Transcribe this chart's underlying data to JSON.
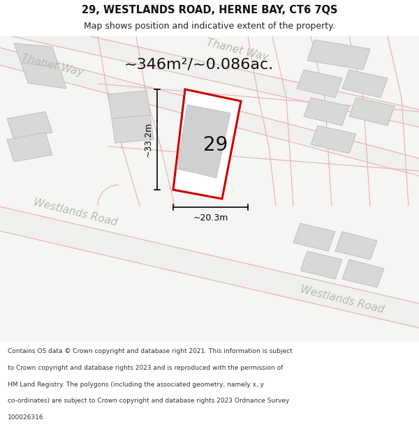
{
  "title": "29, WESTLANDS ROAD, HERNE BAY, CT6 7QS",
  "subtitle": "Map shows position and indicative extent of the property.",
  "area_text": "~346m²/~0.086ac.",
  "label_number": "29",
  "dim_vertical": "~33.2m",
  "dim_horizontal": "~20.3m",
  "footer_lines": [
    "Contains OS data © Crown copyright and database right 2021. This information is subject",
    "to Crown copyright and database rights 2023 and is reproduced with the permission of",
    "HM Land Registry. The polygons (including the associated geometry, namely x, y",
    "co-ordinates) are subject to Crown copyright and database rights 2023 Ordnance Survey",
    "100026316."
  ],
  "map_bg": "#f8f8f6",
  "road_surface": "#f0f0ee",
  "road_edge_color": "#e8b0b0",
  "building_fill": "#d8d8d8",
  "building_stroke": "#c0c0c0",
  "highlight_stroke": "#cc0000",
  "road_label_color": "#b8b8b2",
  "title_fontsize": 10.5,
  "subtitle_fontsize": 9,
  "area_fontsize": 16,
  "number_fontsize": 20,
  "footer_fontsize": 6.5,
  "dim_fontsize": 9,
  "road_label_size": 11
}
